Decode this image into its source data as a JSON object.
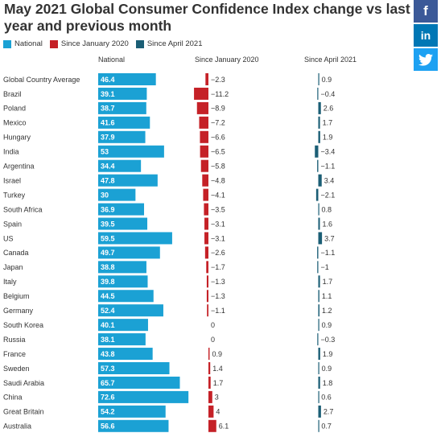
{
  "title": "May 2021 Global Consumer Confidence Index change vs last year and previous month",
  "social": [
    {
      "name": "facebook-icon",
      "glyph": "f"
    },
    {
      "name": "linkedin-icon",
      "glyph": "in"
    },
    {
      "name": "twitter-icon",
      "glyph": ""
    }
  ],
  "colors": {
    "national": "#1ba1d4",
    "since_january": "#c52127",
    "since_april": "#1b5e75",
    "bar_text": "#ffffff",
    "label_text": "#333333"
  },
  "chart_data": {
    "type": "bar",
    "legend_position": "top-left",
    "categories": [
      "Global Country Average",
      "Brazil",
      "Poland",
      "Mexico",
      "Hungary",
      "India",
      "Argentina",
      "Israel",
      "Turkey",
      "South Africa",
      "Spain",
      "US",
      "Canada",
      "Japan",
      "Italy",
      "Belgium",
      "Germany",
      "South Korea",
      "Russia",
      "France",
      "Sweden",
      "Saudi Arabia",
      "China",
      "Great Britain",
      "Australia"
    ],
    "series": [
      {
        "name": "National",
        "values": [
          46.4,
          39.1,
          38.7,
          41.6,
          37.9,
          53,
          34.4,
          47.8,
          30,
          36.9,
          39.5,
          59.5,
          49.7,
          38.8,
          39.8,
          44.5,
          52.4,
          40.1,
          38.1,
          43.8,
          57.3,
          65.7,
          72.6,
          54.2,
          56.6
        ]
      },
      {
        "name": "Since January 2020",
        "values": [
          -2.3,
          -11.2,
          -8.9,
          -7.2,
          -6.6,
          -6.5,
          -5.8,
          -4.8,
          -4.1,
          -3.5,
          -3.1,
          -3.1,
          -2.6,
          -1.7,
          -1.3,
          -1.3,
          -1.1,
          0,
          0,
          0.9,
          1.4,
          1.7,
          3,
          4,
          6.1
        ]
      },
      {
        "name": "Since April 2021",
        "values": [
          0.9,
          -0.4,
          2.6,
          1.7,
          1.9,
          -3.4,
          -1.1,
          3.4,
          -2.1,
          0.8,
          1.6,
          3.7,
          -1.1,
          -1,
          1.7,
          1.1,
          1.2,
          0.9,
          -0.3,
          1.9,
          0.9,
          1.8,
          0.6,
          2.7,
          0.7
        ]
      }
    ]
  }
}
